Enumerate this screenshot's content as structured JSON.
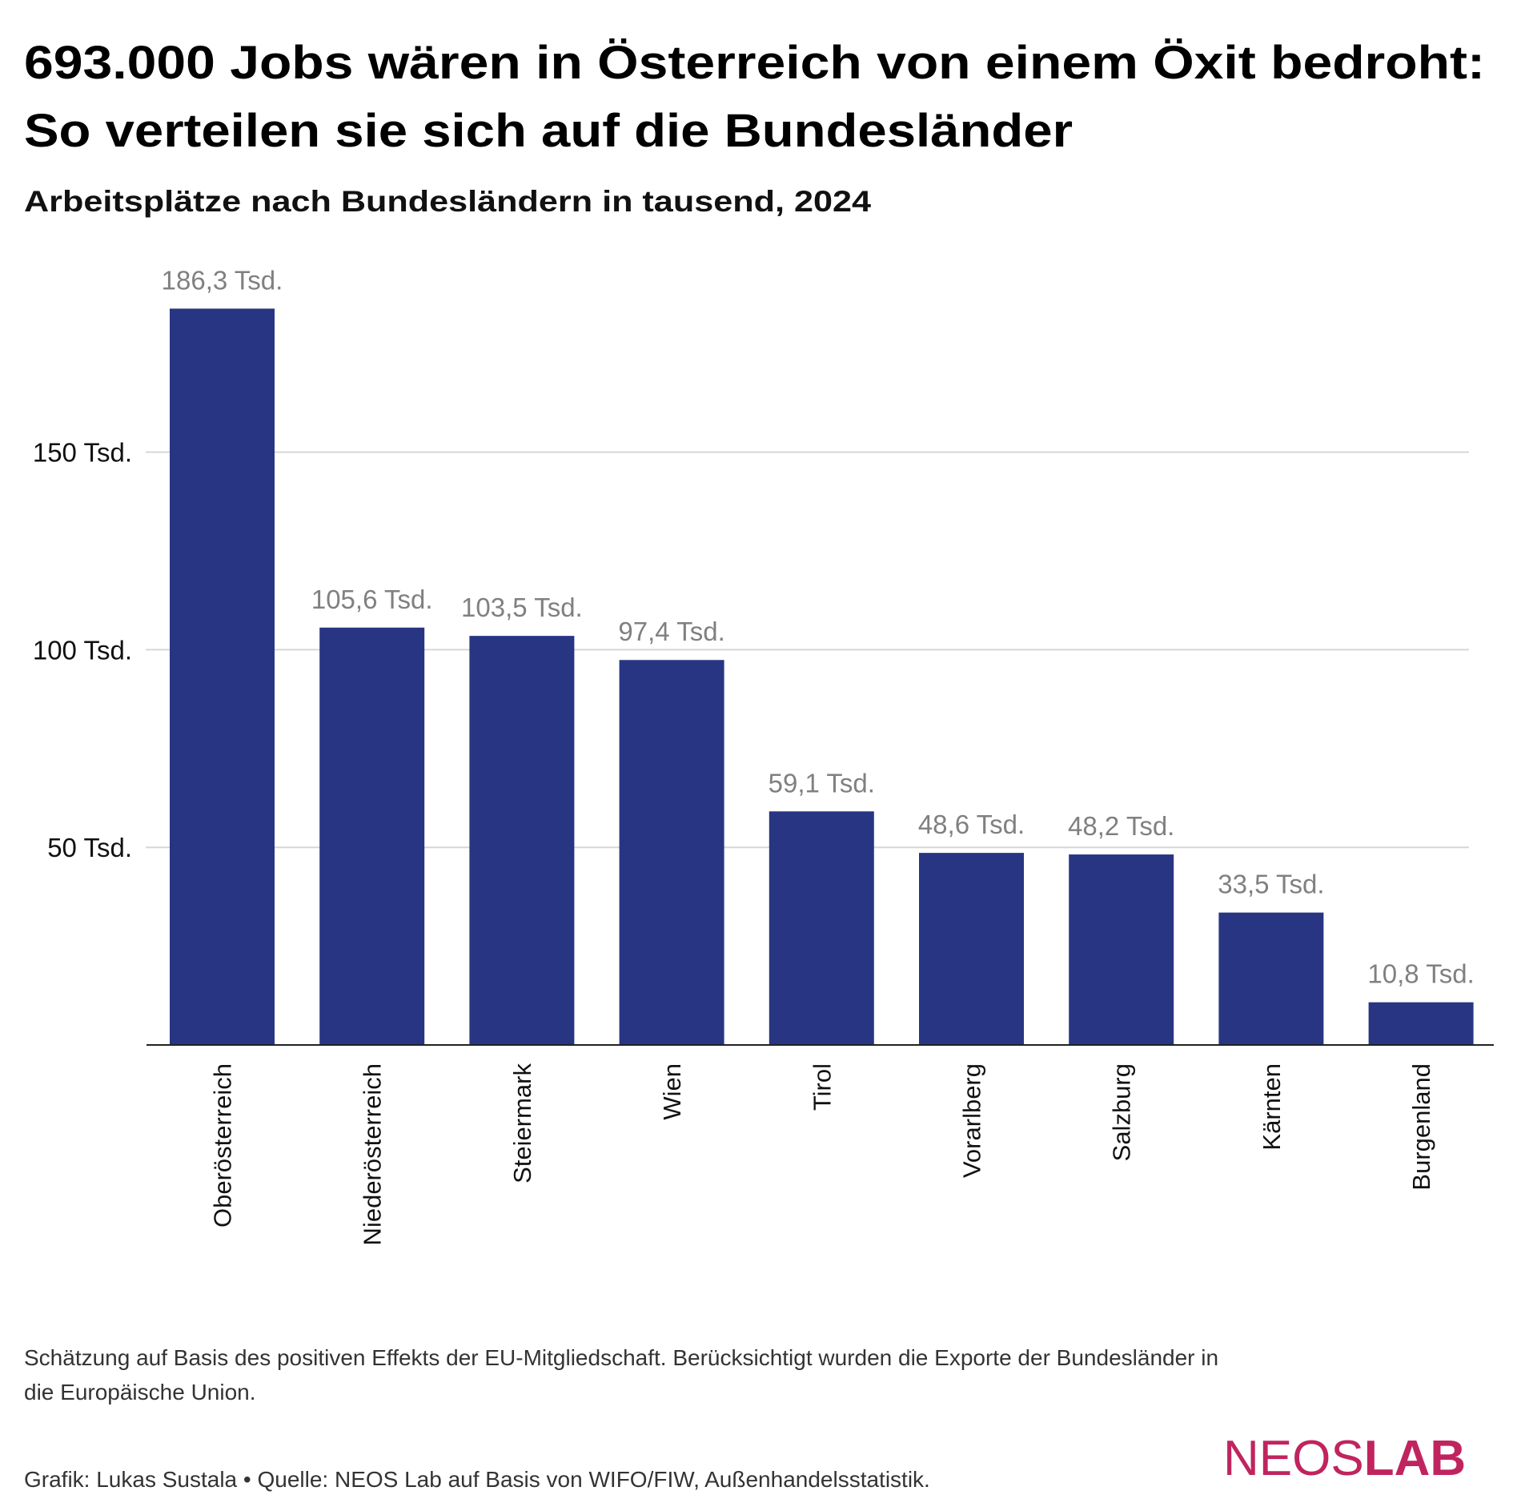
{
  "chart_data": {
    "type": "bar",
    "title": "693.000 Jobs wären in Österreich von einem Öxit bedroht:",
    "title_line2": "So verteilen sie sich auf die Bundesländer",
    "subtitle": "Arbeitsplätze nach Bundesländern in tausend, 2024",
    "categories": [
      "Oberösterreich",
      "Niederösterreich",
      "Steiermark",
      "Wien",
      "Tirol",
      "Vorarlberg",
      "Salzburg",
      "Kärnten",
      "Burgenland"
    ],
    "values": [
      186.3,
      105.6,
      103.5,
      97.4,
      59.1,
      48.6,
      48.2,
      33.5,
      10.8
    ],
    "value_labels": [
      "186,3 Tsd.",
      "105,6 Tsd.",
      "103,5 Tsd.",
      "97,4 Tsd.",
      "59,1 Tsd.",
      "48,6 Tsd.",
      "48,2 Tsd.",
      "33,5 Tsd.",
      "10,8 Tsd."
    ],
    "yticks": [
      50,
      100,
      150
    ],
    "ytick_labels": [
      "50 Tsd.",
      "100 Tsd.",
      "150 Tsd."
    ],
    "ylim": [
      0,
      190
    ],
    "xlabel": "",
    "ylabel": "",
    "grid": true,
    "bar_color": "#283583",
    "label_color": "#808080"
  },
  "footnote": {
    "line1": "Schätzung auf Basis des positiven Effekts der EU-Mitgliedschaft. Berücksichtigt wurden die Exporte der Bundesländer in",
    "line2": "die Europäische Union."
  },
  "credit": "Grafik: Lukas Sustala • Quelle: NEOS Lab auf Basis von WIFO/FIW, Außenhandelsstatistik.",
  "logo": {
    "text_a": "NEOS",
    "text_b": "LAB",
    "color": "#c0245f"
  }
}
